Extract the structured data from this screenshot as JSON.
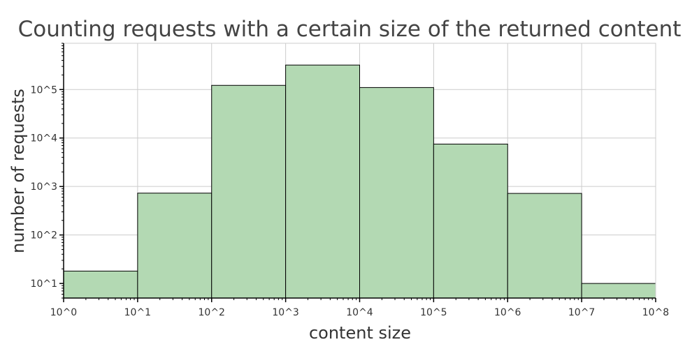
{
  "chart_data": {
    "type": "bar",
    "title": "Counting requests with a certain size of the returned content",
    "xlabel": "content size",
    "ylabel": "number of requests",
    "x_scale": "log",
    "y_scale": "log",
    "xlim": [
      1,
      100000000
    ],
    "ylim": [
      5,
      900000
    ],
    "x_ticks": [
      {
        "value": 1,
        "label": "10^0"
      },
      {
        "value": 10,
        "label": "10^1"
      },
      {
        "value": 100,
        "label": "10^2"
      },
      {
        "value": 1000,
        "label": "10^3"
      },
      {
        "value": 10000,
        "label": "10^4"
      },
      {
        "value": 100000,
        "label": "10^5"
      },
      {
        "value": 1000000,
        "label": "10^6"
      },
      {
        "value": 10000000,
        "label": "10^7"
      },
      {
        "value": 100000000,
        "label": "10^8"
      }
    ],
    "y_ticks": [
      {
        "value": 10,
        "label": "10^1"
      },
      {
        "value": 100,
        "label": "10^2"
      },
      {
        "value": 1000,
        "label": "10^3"
      },
      {
        "value": 10000,
        "label": "10^4"
      },
      {
        "value": 100000,
        "label": "10^5"
      }
    ],
    "bins": [
      {
        "x_start": 1,
        "x_end": 10,
        "count": 18
      },
      {
        "x_start": 10,
        "x_end": 100,
        "count": 730
      },
      {
        "x_start": 100,
        "x_end": 1000,
        "count": 122000
      },
      {
        "x_start": 1000,
        "x_end": 10000,
        "count": 320000
      },
      {
        "x_start": 10000,
        "x_end": 100000,
        "count": 110000
      },
      {
        "x_start": 100000,
        "x_end": 1000000,
        "count": 7500
      },
      {
        "x_start": 1000000,
        "x_end": 10000000,
        "count": 720
      },
      {
        "x_start": 10000000,
        "x_end": 100000000,
        "count": 10
      }
    ],
    "grid": true,
    "colors": {
      "bar_fill": "#b3d9b3",
      "bar_edge": "#000000",
      "grid": "#cccccc"
    }
  }
}
